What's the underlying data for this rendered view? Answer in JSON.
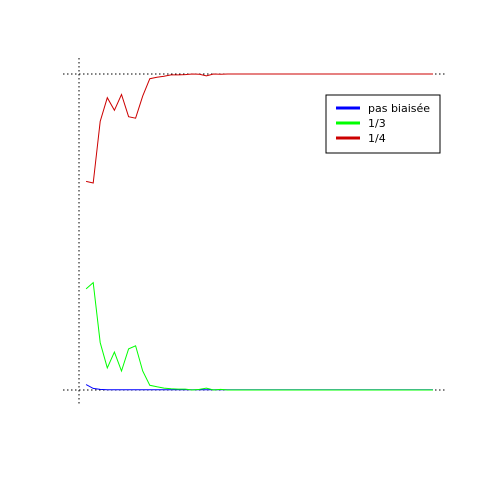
{
  "chart_data": {
    "type": "line",
    "title": "",
    "xlabel": "",
    "ylabel": "",
    "xlim": [
      0,
      100
    ],
    "ylim": [
      0,
      1
    ],
    "reference_lines": {
      "x": [
        0
      ],
      "y": [
        0,
        1
      ],
      "style": "dotted"
    },
    "legend": {
      "position": "top-right"
    },
    "series": [
      {
        "name": "pas biaisée",
        "color": "#0000ff",
        "x": [
          2,
          4,
          6,
          8,
          10,
          12,
          14,
          16,
          18,
          20,
          22,
          24,
          26,
          28,
          30,
          32,
          34,
          36,
          38,
          40,
          42,
          44,
          46,
          48,
          50,
          52,
          54,
          56,
          58,
          60,
          62,
          64,
          66,
          68,
          70,
          72,
          74,
          76,
          78,
          80,
          82,
          84,
          86,
          88,
          90,
          92,
          94,
          96,
          98,
          100
        ],
        "values": [
          0.017,
          0.005,
          0.002,
          0.001,
          0.001,
          0.001,
          0.001,
          0.001,
          0.001,
          0.001,
          0.001,
          0.001,
          0.001,
          0.001,
          0.001,
          0.001,
          0.001,
          0.001,
          0.001,
          0.001,
          0.001,
          0.001,
          0.001,
          0.001,
          0.001,
          0.001,
          0.001,
          0.001,
          0.001,
          0.001,
          0.001,
          0.001,
          0.001,
          0.001,
          0.001,
          0.001,
          0.001,
          0.001,
          0.001,
          0.001,
          0.001,
          0.001,
          0.001,
          0.001,
          0.001,
          0.001,
          0.001,
          0.001,
          0.001,
          0.001
        ]
      },
      {
        "name": "1/3",
        "color": "#00ff00",
        "x": [
          2,
          4,
          6,
          8,
          10,
          12,
          14,
          16,
          18,
          20,
          22,
          24,
          26,
          28,
          30,
          32,
          34,
          36,
          38,
          40,
          42,
          44,
          46,
          48,
          50,
          52,
          54,
          56,
          58,
          60,
          62,
          64,
          66,
          68,
          70,
          72,
          74,
          76,
          78,
          80,
          82,
          84,
          86,
          88,
          90,
          92,
          94,
          96,
          98,
          100
        ],
        "values": [
          0.32,
          0.34,
          0.15,
          0.07,
          0.12,
          0.06,
          0.13,
          0.14,
          0.06,
          0.015,
          0.01,
          0.006,
          0.004,
          0.003,
          0.003,
          0.0,
          0.002,
          0.006,
          0.0,
          0.002,
          0.0,
          0.0,
          0.0,
          0.0,
          0.0,
          0.0,
          0.0,
          0.0,
          0.0,
          0.0,
          0.0,
          0.0,
          0.0,
          0.0,
          0.0,
          0.0,
          0.0,
          0.0,
          0.0,
          0.0,
          0.0,
          0.0,
          0.0,
          0.0,
          0.0,
          0.0,
          0.0,
          0.0,
          0.0,
          0.0
        ]
      },
      {
        "name": "1/4",
        "color": "#cc0000",
        "x": [
          2,
          4,
          6,
          8,
          10,
          12,
          14,
          16,
          18,
          20,
          22,
          24,
          26,
          28,
          30,
          32,
          34,
          36,
          38,
          40,
          42,
          44,
          46,
          48,
          50,
          52,
          54,
          56,
          58,
          60,
          62,
          64,
          66,
          68,
          70,
          72,
          74,
          76,
          78,
          80,
          82,
          84,
          86,
          88,
          90,
          92,
          94,
          96,
          98,
          100
        ],
        "values": [
          0.66,
          0.655,
          0.85,
          0.925,
          0.885,
          0.935,
          0.865,
          0.86,
          0.93,
          0.985,
          0.99,
          0.993,
          0.997,
          0.997,
          0.998,
          1.0,
          0.999,
          0.994,
          1.0,
          0.999,
          1.0,
          1.0,
          1.0,
          1.0,
          1.0,
          1.0,
          1.0,
          1.0,
          1.0,
          1.0,
          1.0,
          1.0,
          1.0,
          1.0,
          1.0,
          1.0,
          1.0,
          1.0,
          1.0,
          1.0,
          1.0,
          1.0,
          1.0,
          1.0,
          1.0,
          1.0,
          1.0,
          1.0,
          1.0,
          1.0
        ]
      }
    ]
  }
}
